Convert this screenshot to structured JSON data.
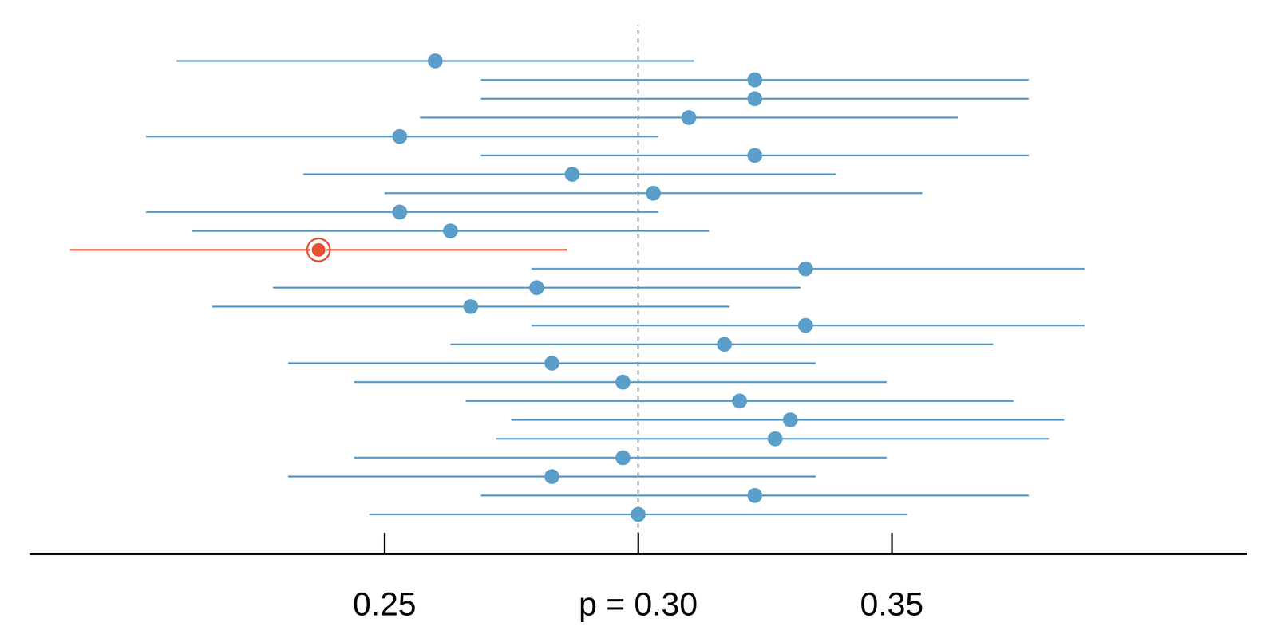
{
  "chart_data": {
    "type": "interval",
    "orientation": "horizontal",
    "tick_labels": "x",
    "grid": false,
    "color": "#5b9ec9",
    "values": [
      0.26,
      0.323,
      0.323,
      0.31,
      0.253,
      0.323,
      0.287,
      0.303,
      0.253,
      0.263,
      0.237,
      0.333,
      0.28,
      0.267,
      0.333,
      0.317,
      0.283,
      0.297,
      0.32,
      0.33,
      0.327,
      0.297,
      0.283,
      0.323,
      0.3
    ],
    "lower": [
      0.209,
      0.269,
      0.269,
      0.257,
      0.203,
      0.269,
      0.234,
      0.25,
      0.203,
      0.212,
      0.188,
      0.279,
      0.228,
      0.216,
      0.279,
      0.263,
      0.231,
      0.244,
      0.266,
      0.275,
      0.272,
      0.244,
      0.231,
      0.269,
      0.247
    ],
    "upper": [
      0.311,
      0.377,
      0.377,
      0.363,
      0.304,
      0.377,
      0.339,
      0.356,
      0.304,
      0.314,
      0.286,
      0.388,
      0.332,
      0.318,
      0.388,
      0.37,
      0.335,
      0.349,
      0.374,
      0.384,
      0.381,
      0.349,
      0.335,
      0.377,
      0.353
    ],
    "colors": [
      "#5b9ec9",
      "#5b9ec9",
      "#5b9ec9",
      "#5b9ec9",
      "#5b9ec9",
      "#5b9ec9",
      "#5b9ec9",
      "#5b9ec9",
      "#5b9ec9",
      "#5b9ec9",
      "#ea5133",
      "#5b9ec9",
      "#5b9ec9",
      "#5b9ec9",
      "#5b9ec9",
      "#5b9ec9",
      "#5b9ec9",
      "#5b9ec9",
      "#5b9ec9",
      "#5b9ec9",
      "#5b9ec9",
      "#5b9ec9",
      "#5b9ec9",
      "#5b9ec9",
      "#5b9ec9"
    ],
    "reference_line": 0.3,
    "xlim": [
      0.18,
      0.42
    ],
    "xticks": [
      0.25,
      {
        "value": 0.3,
        "label": "p = 0.30"
      },
      0.35
    ]
  }
}
